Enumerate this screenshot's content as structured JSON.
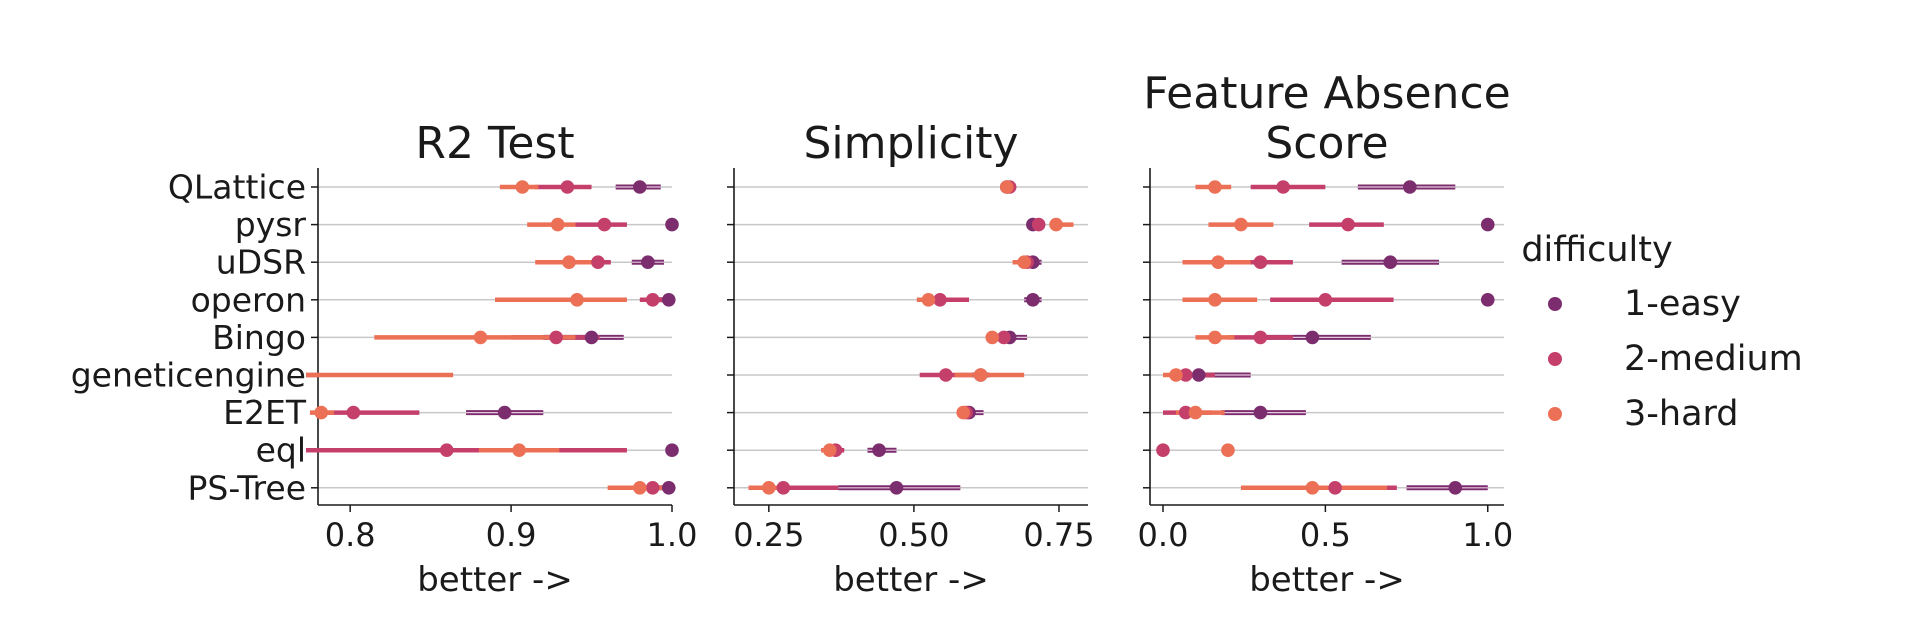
{
  "chart_data": {
    "type": "scatter",
    "categories": [
      "QLattice",
      "pysr",
      "uDSR",
      "operon",
      "Bingo",
      "geneticengine",
      "E2ET",
      "eql",
      "PS-Tree"
    ],
    "legend": {
      "title": "difficulty",
      "placement": "right",
      "entries": [
        {
          "name": "1-easy",
          "color": "#7b2d6e"
        },
        {
          "name": "2-medium",
          "color": "#c53f6b"
        },
        {
          "name": "3-hard",
          "color": "#ec7056"
        }
      ]
    },
    "panels": [
      {
        "title_lines": [
          "R2 Test"
        ],
        "xlabel": "better ->",
        "xlim": [
          0.78,
          1.0
        ],
        "xticks": [
          "0.8",
          "0.9",
          "1.0"
        ],
        "xtick_values": [
          0.8,
          0.9,
          1.0
        ],
        "grid": "horizontal",
        "series": [
          {
            "name": "1-easy",
            "values": [
              0.98,
              1.0,
              0.985,
              0.998,
              0.95,
              null,
              0.896,
              1.0,
              0.998
            ],
            "lo": [
              0.965,
              0.998,
              0.975,
              0.99,
              0.92,
              null,
              0.872,
              0.998,
              0.99
            ],
            "hi": [
              0.993,
              1.0,
              0.995,
              1.0,
              0.97,
              null,
              0.92,
              1.0,
              1.0
            ]
          },
          {
            "name": "2-medium",
            "values": [
              0.935,
              0.958,
              0.954,
              0.988,
              0.928,
              0.76,
              0.802,
              0.86,
              0.988
            ],
            "lo": [
              0.915,
              0.94,
              0.935,
              0.98,
              0.9,
              0.74,
              0.785,
              0.75,
              0.98
            ],
            "hi": [
              0.95,
              0.972,
              0.962,
              0.995,
              0.955,
              0.78,
              0.843,
              0.972,
              0.995
            ]
          },
          {
            "name": "3-hard",
            "values": [
              0.907,
              0.929,
              0.936,
              0.941,
              0.881,
              0.76,
              0.782,
              0.905,
              0.98
            ],
            "lo": [
              0.893,
              0.91,
              0.915,
              0.89,
              0.815,
              0.74,
              0.775,
              0.88,
              0.96
            ],
            "hi": [
              0.917,
              0.94,
              0.95,
              0.972,
              0.94,
              0.864,
              0.79,
              0.93,
              0.995
            ]
          }
        ]
      },
      {
        "title_lines": [
          "Simplicity"
        ],
        "xlabel": "better ->",
        "xlim": [
          0.19,
          0.8
        ],
        "xticks": [
          "0.25",
          "0.50",
          "0.75"
        ],
        "xtick_values": [
          0.25,
          0.5,
          0.75
        ],
        "grid": "horizontal",
        "series": [
          {
            "name": "1-easy",
            "values": [
              0.66,
              0.705,
              0.705,
              0.705,
              0.665,
              0.615,
              0.595,
              0.44,
              0.47
            ],
            "lo": [
              0.65,
              0.695,
              0.68,
              0.69,
              0.655,
              0.6,
              0.585,
              0.42,
              0.37
            ],
            "hi": [
              0.67,
              0.715,
              0.72,
              0.72,
              0.695,
              0.63,
              0.62,
              0.47,
              0.58
            ]
          },
          {
            "name": "2-medium",
            "values": [
              0.665,
              0.715,
              0.695,
              0.545,
              0.655,
              0.555,
              0.59,
              0.365,
              0.275
            ],
            "lo": [
              0.655,
              0.705,
              0.68,
              0.52,
              0.645,
              0.51,
              0.58,
              0.35,
              0.22
            ],
            "hi": [
              0.675,
              0.725,
              0.71,
              0.595,
              0.665,
              0.61,
              0.6,
              0.38,
              0.37
            ]
          },
          {
            "name": "3-hard",
            "values": [
              0.66,
              0.745,
              0.69,
              0.525,
              0.635,
              0.615,
              0.585,
              0.355,
              0.25
            ],
            "lo": [
              0.65,
              0.735,
              0.67,
              0.505,
              0.625,
              0.57,
              0.575,
              0.34,
              0.215
            ],
            "hi": [
              0.67,
              0.775,
              0.705,
              0.545,
              0.645,
              0.69,
              0.595,
              0.37,
              0.28
            ]
          }
        ]
      },
      {
        "title_lines": [
          "Feature Absence",
          "Score"
        ],
        "xlabel": "better ->",
        "xlim": [
          -0.04,
          1.05
        ],
        "xticks": [
          "0.0",
          "0.5",
          "1.0"
        ],
        "xtick_values": [
          0.0,
          0.5,
          1.0
        ],
        "grid": "horizontal",
        "series": [
          {
            "name": "1-easy",
            "values": [
              0.76,
              1.0,
              0.7,
              1.0,
              0.46,
              0.11,
              0.3,
              null,
              0.9
            ],
            "lo": [
              0.6,
              1.0,
              0.55,
              1.0,
              0.3,
              0.04,
              0.18,
              null,
              0.75
            ],
            "hi": [
              0.9,
              1.0,
              0.85,
              1.0,
              0.64,
              0.27,
              0.44,
              null,
              1.0
            ]
          },
          {
            "name": "2-medium",
            "values": [
              0.37,
              0.57,
              0.3,
              0.5,
              0.3,
              0.07,
              0.07,
              0.0,
              0.53
            ],
            "lo": [
              0.27,
              0.45,
              0.2,
              0.33,
              0.2,
              0.02,
              0.0,
              0.0,
              0.35
            ],
            "hi": [
              0.5,
              0.68,
              0.4,
              0.71,
              0.4,
              0.16,
              0.15,
              0.0,
              0.72
            ]
          },
          {
            "name": "3-hard",
            "values": [
              0.16,
              0.24,
              0.17,
              0.16,
              0.16,
              0.04,
              0.1,
              0.2,
              0.46
            ],
            "lo": [
              0.1,
              0.14,
              0.06,
              0.06,
              0.1,
              0.0,
              0.04,
              0.2,
              0.24
            ],
            "hi": [
              0.21,
              0.34,
              0.27,
              0.29,
              0.22,
              0.1,
              0.19,
              0.2,
              0.69
            ]
          }
        ]
      }
    ]
  }
}
